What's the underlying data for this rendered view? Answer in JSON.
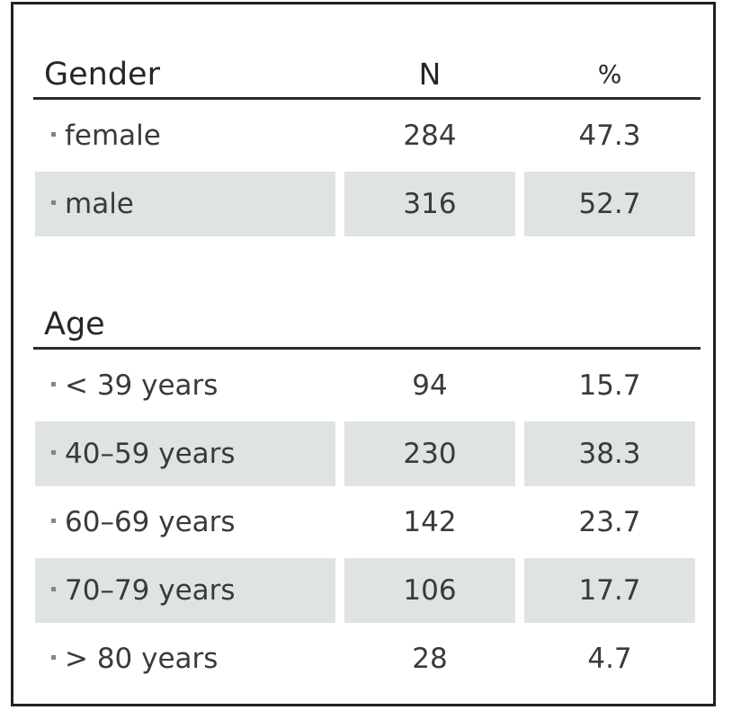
{
  "table": {
    "columns": {
      "n": "N",
      "pct": "%"
    },
    "sections": [
      {
        "title": "Gender",
        "rows": [
          {
            "label": "female",
            "n": "284",
            "pct": "47.3",
            "shaded": false
          },
          {
            "label": "male",
            "n": "316",
            "pct": "52.7",
            "shaded": true
          }
        ]
      },
      {
        "title": "Age",
        "rows": [
          {
            "label": "< 39 years",
            "n": "94",
            "pct": "15.7",
            "shaded": false
          },
          {
            "label": "40–59 years",
            "n": "230",
            "pct": "38.3",
            "shaded": true
          },
          {
            "label": "60–69 years",
            "n": "142",
            "pct": "23.7",
            "shaded": false
          },
          {
            "label": "70–79 years",
            "n": "106",
            "pct": "17.7",
            "shaded": true
          },
          {
            "label": "> 80 years",
            "n": "28",
            "pct": "4.7",
            "shaded": false
          }
        ]
      }
    ],
    "colors": {
      "shade": "#dfe4e3",
      "rule": "#2a2a2a",
      "border": "#222222"
    }
  }
}
